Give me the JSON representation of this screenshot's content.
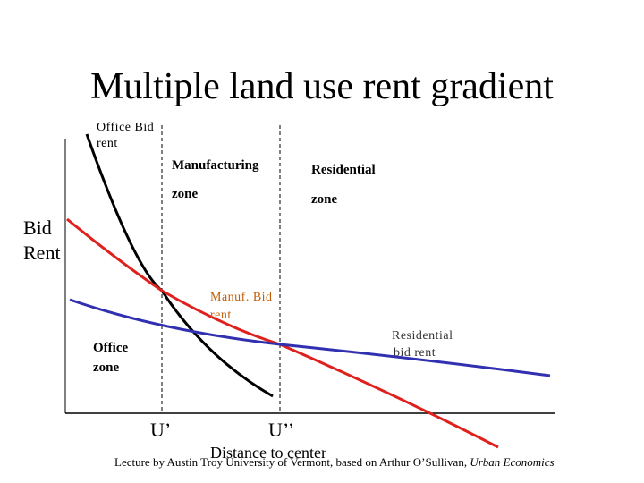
{
  "title": "Multiple land use rent gradient",
  "labels": {
    "office_bid_rent": [
      "Office Bid",
      "rent"
    ],
    "manufacturing_zone": [
      "Manufacturing",
      "zone"
    ],
    "residential_zone": [
      "Residential",
      "zone"
    ],
    "y_axis": [
      "Bid",
      "Rent"
    ],
    "manuf_bid_rent": [
      "Manuf. Bid",
      "rent"
    ],
    "residential_bid_rent": [
      "Residential",
      "bid rent"
    ],
    "office_zone": [
      "Office",
      "zone"
    ],
    "u1": "U’",
    "u2": "U’’",
    "x_axis": "Distance to center"
  },
  "footer": {
    "text": "Lecture by Austin Troy University of Vermont, based on Arthur O’Sullivan,",
    "source": "Urban Economics"
  }
}
